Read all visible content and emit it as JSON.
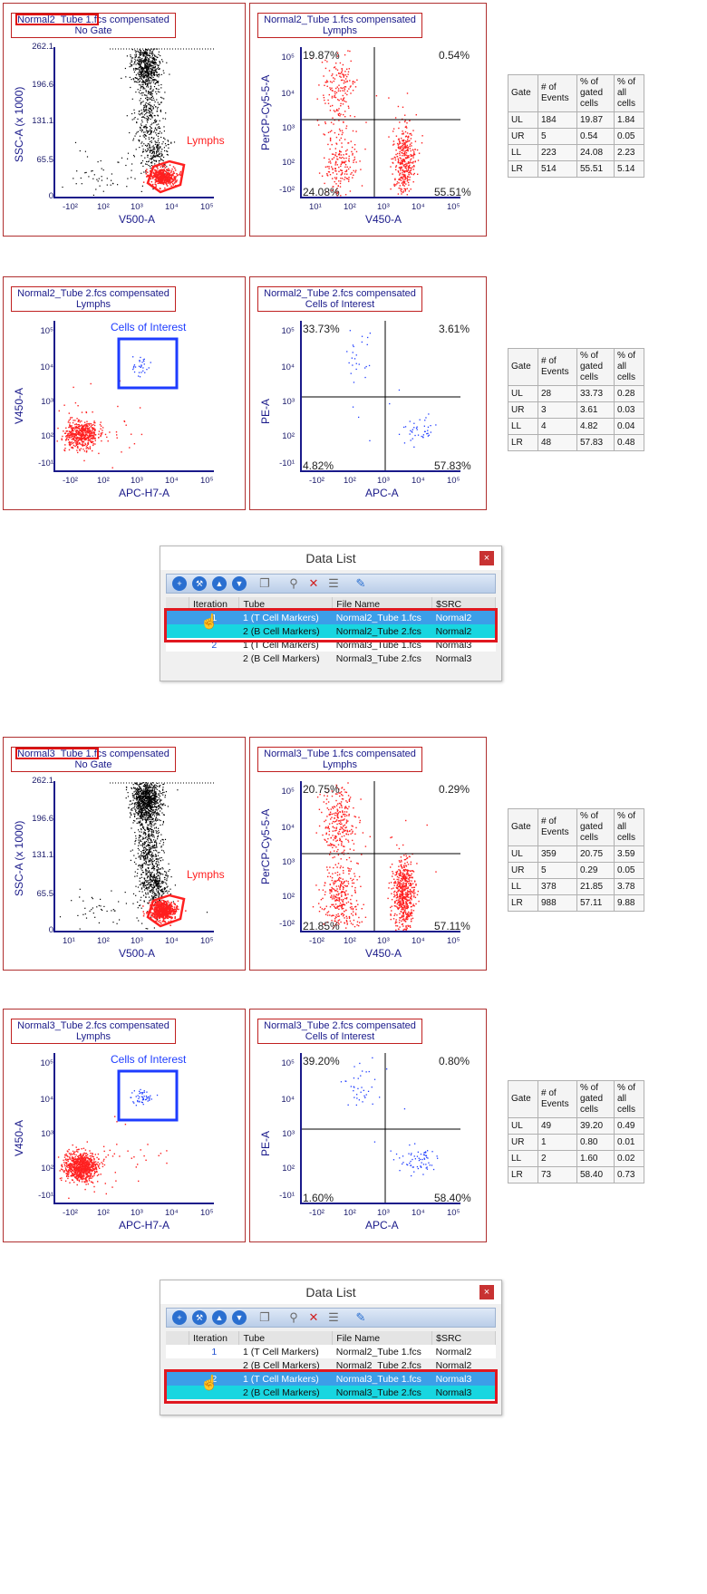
{
  "colors": {
    "gate_red": "#ff2020",
    "coi_blue": "#1e3cff",
    "axis": "#1a1a8a",
    "frame": "#b03030"
  },
  "log_ticks": [
    "-10²",
    "10²",
    "10³",
    "10⁴",
    "10⁵"
  ],
  "log_ticks_pos": [
    "10¹",
    "10²",
    "10³",
    "10⁴",
    "10⁵"
  ],
  "log_ticks_y": [
    "10⁵",
    "10⁴",
    "10³",
    "10²",
    "-10²"
  ],
  "log_ticks_y2": [
    "10⁵",
    "10⁴",
    "10³",
    "10²",
    "-10¹"
  ],
  "ssc_ticks": [
    "262.1",
    "196.6",
    "131.1",
    "65.5",
    "0"
  ],
  "sections": [
    {
      "plots": [
        {
          "title_hl": "Normal2_Tube 1",
          "title_rest": ".fcs compensated",
          "subtitle": "No Gate",
          "xlabel": "V500-A",
          "ylabel": "SSC-A (x 1000)",
          "gate": "Lymphs"
        },
        {
          "title": "Normal2_Tube 1.fcs compensated",
          "subtitle": "Lymphs",
          "xlabel": "V450-A",
          "ylabel": "PerCP-Cy5-5-A",
          "q": {
            "ul": "19.87%",
            "ur": "0.54%",
            "ll": "24.08%",
            "lr": "55.51%"
          }
        }
      ],
      "stats": {
        "headers": [
          "Gate",
          "# of Events",
          "% of gated cells",
          "% of all cells"
        ],
        "rows": [
          [
            "UL",
            "184",
            "19.87",
            "1.84"
          ],
          [
            "UR",
            "5",
            "0.54",
            "0.05"
          ],
          [
            "LL",
            "223",
            "24.08",
            "2.23"
          ],
          [
            "LR",
            "514",
            "55.51",
            "5.14"
          ]
        ]
      }
    },
    {
      "plots": [
        {
          "title": "Normal2_Tube 2.fcs compensated",
          "subtitle": "Lymphs",
          "xlabel": "APC-H7-A",
          "ylabel": "V450-A",
          "gate": "Cells of Interest"
        },
        {
          "title": "Normal2_Tube 2.fcs compensated",
          "subtitle": "Cells of Interest",
          "xlabel": "APC-A",
          "ylabel": "PE-A",
          "q": {
            "ul": "33.73%",
            "ur": "3.61%",
            "ll": "4.82%",
            "lr": "57.83%"
          }
        }
      ],
      "stats": {
        "headers": [
          "Gate",
          "# of Events",
          "% of gated cells",
          "% of all cells"
        ],
        "rows": [
          [
            "UL",
            "28",
            "33.73",
            "0.28"
          ],
          [
            "UR",
            "3",
            "3.61",
            "0.03"
          ],
          [
            "LL",
            "4",
            "4.82",
            "0.04"
          ],
          [
            "LR",
            "48",
            "57.83",
            "0.48"
          ]
        ]
      }
    },
    {
      "plots": [
        {
          "title_hl": "Normal3_Tube 1",
          "title_rest": ".fcs compensated",
          "subtitle": "No Gate",
          "xlabel": "V500-A",
          "ylabel": "SSC-A (x 1000)",
          "gate": "Lymphs"
        },
        {
          "title": "Normal3_Tube 1.fcs compensated",
          "subtitle": "Lymphs",
          "xlabel": "V450-A",
          "ylabel": "PerCP-Cy5-5-A",
          "q": {
            "ul": "20.75%",
            "ur": "0.29%",
            "ll": "21.85%",
            "lr": "57.11%"
          }
        }
      ],
      "stats": {
        "headers": [
          "Gate",
          "# of Events",
          "% of gated cells",
          "% of all cells"
        ],
        "rows": [
          [
            "UL",
            "359",
            "20.75",
            "3.59"
          ],
          [
            "UR",
            "5",
            "0.29",
            "0.05"
          ],
          [
            "LL",
            "378",
            "21.85",
            "3.78"
          ],
          [
            "LR",
            "988",
            "57.11",
            "9.88"
          ]
        ]
      }
    },
    {
      "plots": [
        {
          "title": "Normal3_Tube 2.fcs compensated",
          "subtitle": "Lymphs",
          "xlabel": "APC-H7-A",
          "ylabel": "V450-A",
          "gate": "Cells of Interest"
        },
        {
          "title": "Normal3_Tube 2.fcs compensated",
          "subtitle": "Cells of Interest",
          "xlabel": "APC-A",
          "ylabel": "PE-A",
          "q": {
            "ul": "39.20%",
            "ur": "0.80%",
            "ll": "1.60%",
            "lr": "58.40%"
          }
        }
      ],
      "stats": {
        "headers": [
          "Gate",
          "# of Events",
          "% of gated cells",
          "% of all cells"
        ],
        "rows": [
          [
            "UL",
            "49",
            "39.20",
            "0.49"
          ],
          [
            "UR",
            "1",
            "0.80",
            "0.01"
          ],
          [
            "LL",
            "2",
            "1.60",
            "0.02"
          ],
          [
            "LR",
            "73",
            "58.40",
            "0.73"
          ]
        ]
      }
    }
  ],
  "datalist": {
    "title": "Data List",
    "close": "×",
    "columns": [
      "Iteration",
      "Tube",
      "File Name",
      "$SRC"
    ],
    "rows": [
      {
        "iteration": "1",
        "tube": "1 (T Cell Markers)",
        "file": "Normal2_Tube 1.fcs",
        "src": "Normal2"
      },
      {
        "iteration": "",
        "tube": "2 (B Cell Markers)",
        "file": "Normal2_Tube 2.fcs",
        "src": "Normal2"
      },
      {
        "iteration": "2",
        "tube": "1 (T Cell Markers)",
        "file": "Normal3_Tube 1.fcs",
        "src": "Normal3"
      },
      {
        "iteration": "",
        "tube": "2 (B Cell Markers)",
        "file": "Normal3_Tube 2.fcs",
        "src": "Normal3"
      }
    ]
  }
}
